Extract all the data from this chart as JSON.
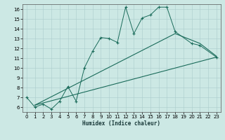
{
  "title": "",
  "xlabel": "Humidex (Indice chaleur)",
  "bg_color": "#cce8e4",
  "line_color": "#1a6b5a",
  "xlim": [
    -0.5,
    23.5
  ],
  "ylim": [
    5.5,
    16.5
  ],
  "xticks": [
    0,
    1,
    2,
    3,
    4,
    5,
    6,
    7,
    8,
    9,
    10,
    11,
    12,
    13,
    14,
    15,
    16,
    17,
    18,
    19,
    20,
    21,
    22,
    23
  ],
  "yticks": [
    6,
    7,
    8,
    9,
    10,
    11,
    12,
    13,
    14,
    15,
    16
  ],
  "line1_x": [
    0,
    1,
    2,
    3,
    4,
    5,
    6,
    7,
    8,
    9,
    10,
    11,
    12,
    13,
    14,
    15,
    16,
    17,
    18,
    20,
    21,
    23
  ],
  "line1_y": [
    7.0,
    6.0,
    6.3,
    5.8,
    6.6,
    8.1,
    6.6,
    10.0,
    11.7,
    13.1,
    13.0,
    12.6,
    16.2,
    13.5,
    15.1,
    15.4,
    16.2,
    16.2,
    13.7,
    12.5,
    12.3,
    11.1
  ],
  "line2_x": [
    1,
    18,
    21,
    23
  ],
  "line2_y": [
    6.2,
    13.5,
    12.5,
    11.2
  ],
  "line3_x": [
    1,
    23
  ],
  "line3_y": [
    6.2,
    11.1
  ],
  "figsize": [
    3.2,
    2.0
  ],
  "dpi": 100
}
